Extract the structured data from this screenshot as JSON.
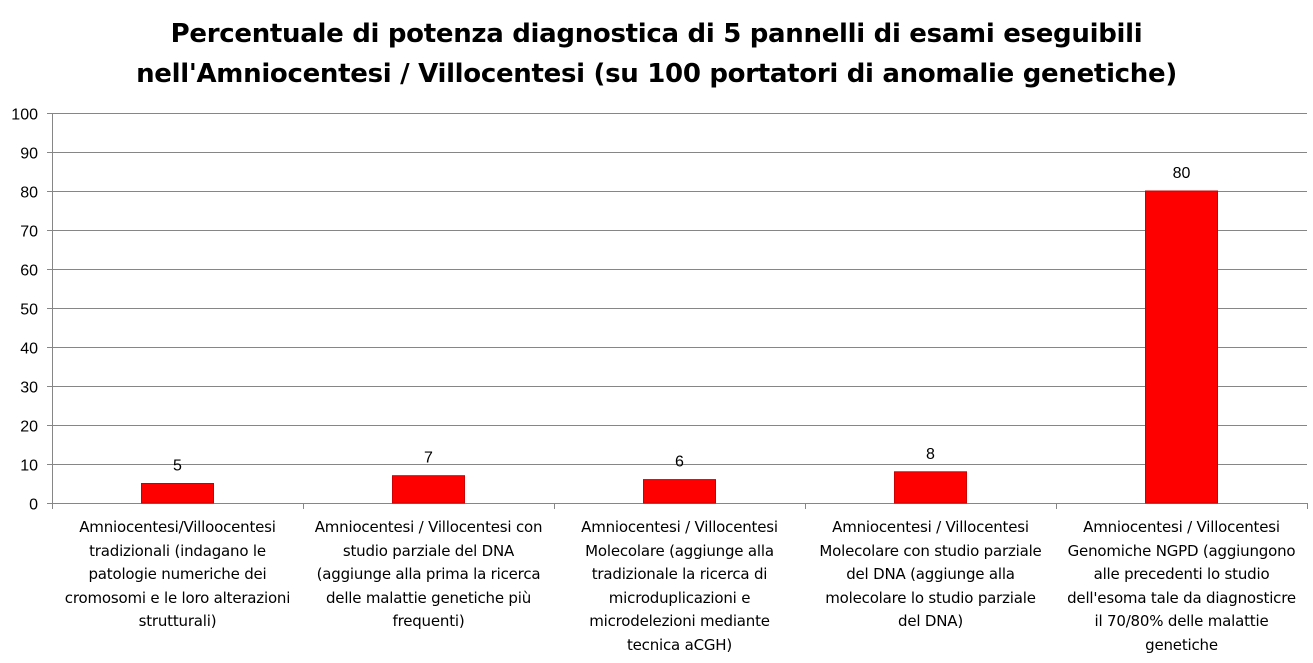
{
  "chart_data": {
    "type": "bar",
    "title_lines": [
      "Percentuale di potenza diagnostica  di 5 pannelli di esami eseguibili",
      "nell'Amniocentesi / Villocentesi (su 100 portatori di anomalie genetiche)"
    ],
    "categories": [
      "Amniocentesi/Villoocentesi tradizionali (indagano le patologie numeriche dei cromosomi e le loro alterazioni strutturali)",
      "Amniocentesi / Villocentesi con studio parziale del DNA (aggiunge alla prima la ricerca delle malattie genetiche più frequenti)",
      "Amniocentesi / Villocentesi Molecolare (aggiunge alla tradizionale la ricerca di microduplicazioni e microdelezioni mediante tecnica aCGH)",
      "Amniocentesi / Villocentesi Molecolare con studio parziale del DNA (aggiunge alla molecolare lo studio parziale del DNA)",
      "Amniocentesi / Villocentesi Genomiche NGPD (aggiungono alle precedenti lo studio dell'esoma tale da diagnosticre il 70/80% delle malattie genetiche"
    ],
    "category_lines": [
      [
        "Amniocentesi/Villoocentesi",
        "tradizionali (indagano le",
        "patologie numeriche dei",
        "cromosomi e le loro alterazioni",
        "strutturali)"
      ],
      [
        "Amniocentesi / Villocentesi con",
        "studio parziale del DNA",
        "(aggiunge alla prima la ricerca",
        "delle malattie genetiche più",
        "frequenti)"
      ],
      [
        "Amniocentesi / Villocentesi",
        "Molecolare (aggiunge alla",
        "tradizionale la ricerca di",
        "microduplicazioni e",
        "microdelezioni mediante",
        "tecnica aCGH)"
      ],
      [
        "Amniocentesi / Villocentesi",
        "Molecolare con studio parziale",
        "del DNA (aggiunge alla",
        "molecolare lo studio parziale",
        "del DNA)"
      ],
      [
        "Amniocentesi / Villocentesi",
        "Genomiche NGPD (aggiungono",
        "alle precedenti lo studio",
        "dell'esoma tale da diagnosticre",
        "il 70/80% delle malattie",
        "genetiche"
      ]
    ],
    "values": [
      5,
      7,
      6,
      8,
      80
    ],
    "data_labels": [
      "5",
      "7",
      "6",
      "8",
      "80"
    ],
    "ylim": [
      0,
      100
    ],
    "yticks": [
      0,
      10,
      20,
      30,
      40,
      50,
      60,
      70,
      80,
      90,
      100
    ],
    "xlabel": "",
    "ylabel": "",
    "grid": true,
    "legend": "none",
    "bar_color": "#ff0000",
    "bar_edge_color": "#cc0000",
    "grid_color": "#868686",
    "axis_color": "#868686"
  }
}
